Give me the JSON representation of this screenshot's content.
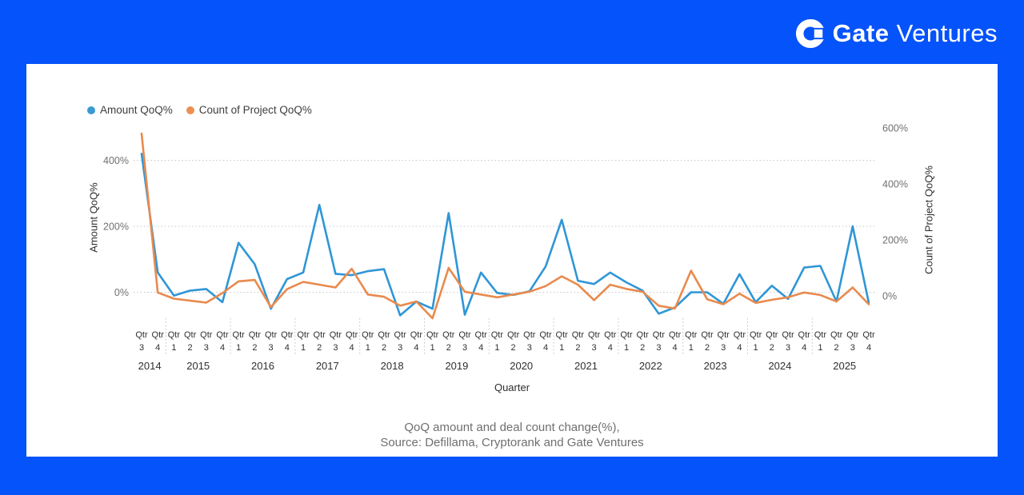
{
  "brand": {
    "name_bold": "Gate",
    "name_light": "Ventures"
  },
  "colors": {
    "frame_blue": "#0553fa",
    "amount_line": "#2f96d6",
    "count_line": "#e98a4d",
    "gridline": "#c8c8c8",
    "separator": "#bdbdbd",
    "axis_tick_text": "#707070",
    "label_text": "#2f2f2f",
    "caption_text": "#6f6f6f"
  },
  "legend": {
    "items": [
      {
        "label": "Amount QoQ%",
        "color": "#3a9ad4"
      },
      {
        "label": "Count of Project QoQ%",
        "color": "#ec8f53"
      }
    ]
  },
  "caption": {
    "line1": "QoQ amount and deal count change(%),",
    "line2": "Source: Defillama, Cryptorank and Gate Ventures"
  },
  "chart_data": {
    "type": "line",
    "title": "QoQ amount and deal count change(%)",
    "x_axis_title": "Quarter",
    "quarter_prefix": "Qtr",
    "grid": "dotted-horizontal",
    "legend_position": "top-left",
    "left_axis": {
      "title": "Amount QoQ%",
      "unit": "%",
      "range": [
        -100,
        500
      ],
      "ticks": [
        {
          "label": "400%",
          "value": 400
        },
        {
          "label": "200%",
          "value": 200
        },
        {
          "label": "0%",
          "value": 0
        }
      ]
    },
    "right_axis": {
      "title": "Count of Project QoQ%",
      "unit": "%",
      "range": [
        -100,
        620
      ],
      "ticks": [
        {
          "label": "600%",
          "value": 600
        },
        {
          "label": "400%",
          "value": 400
        },
        {
          "label": "200%",
          "value": 200
        },
        {
          "label": "0%",
          "value": 0
        }
      ]
    },
    "years": [
      {
        "label": "2014",
        "quarters": [
          3,
          4
        ]
      },
      {
        "label": "2015",
        "quarters": [
          1,
          2,
          3,
          4
        ]
      },
      {
        "label": "2016",
        "quarters": [
          1,
          2,
          3,
          4
        ]
      },
      {
        "label": "2017",
        "quarters": [
          1,
          2,
          3,
          4
        ]
      },
      {
        "label": "2018",
        "quarters": [
          1,
          2,
          3,
          4
        ]
      },
      {
        "label": "2019",
        "quarters": [
          1,
          2,
          3,
          4
        ]
      },
      {
        "label": "2020",
        "quarters": [
          1,
          2,
          3,
          4
        ]
      },
      {
        "label": "2021",
        "quarters": [
          1,
          2,
          3,
          4
        ]
      },
      {
        "label": "2022",
        "quarters": [
          1,
          2,
          3,
          4
        ]
      },
      {
        "label": "2023",
        "quarters": [
          1,
          2,
          3,
          4
        ]
      },
      {
        "label": "2024",
        "quarters": [
          1,
          2,
          3,
          4
        ]
      },
      {
        "label": "2025",
        "quarters": [
          1,
          2,
          3,
          4
        ]
      }
    ],
    "series": [
      {
        "name": "Amount QoQ%",
        "axis": "left",
        "color": "#2f96d6",
        "values": [
          420,
          60,
          -10,
          5,
          10,
          -30,
          150,
          85,
          -50,
          40,
          60,
          265,
          56,
          52,
          64,
          70,
          -70,
          -28,
          -50,
          240,
          -68,
          60,
          -2,
          -8,
          3,
          78,
          220,
          35,
          25,
          60,
          30,
          5,
          -65,
          -46,
          0,
          0,
          -35,
          55,
          -30,
          20,
          -20,
          75,
          80,
          -28,
          200,
          -32
        ]
      },
      {
        "name": "Count of Project QoQ%",
        "axis": "right",
        "color": "#e98a4d",
        "values": [
          580,
          12,
          -10,
          -17,
          -24,
          10,
          52,
          57,
          -40,
          24,
          50,
          40,
          30,
          97,
          5,
          -3,
          -35,
          -20,
          -80,
          100,
          15,
          5,
          -5,
          5,
          15,
          35,
          70,
          40,
          -15,
          40,
          25,
          15,
          -35,
          -45,
          90,
          -12,
          -30,
          8,
          -25,
          -14,
          -5,
          12,
          3,
          -20,
          30,
          -30
        ]
      }
    ]
  }
}
